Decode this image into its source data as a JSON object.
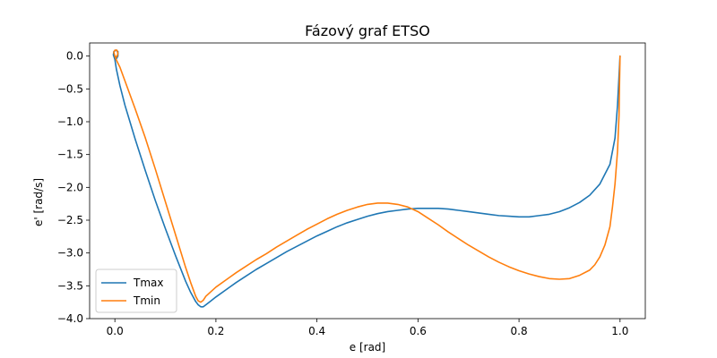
{
  "chart_data": {
    "type": "line",
    "title": "Fázový graf ETSO",
    "xlabel": "e [rad]",
    "ylabel": "e' [rad/s]",
    "xlim": [
      -0.05,
      1.05
    ],
    "ylim": [
      -4.0,
      0.2
    ],
    "xticks": [
      0.0,
      0.2,
      0.4,
      0.6,
      0.8,
      1.0
    ],
    "xtick_labels": [
      "0.0",
      "0.2",
      "0.4",
      "0.6",
      "0.8",
      "1.0"
    ],
    "yticks": [
      0.0,
      -0.5,
      -1.0,
      -1.5,
      -2.0,
      -2.5,
      -3.0,
      -3.5,
      -4.0
    ],
    "ytick_labels": [
      "0.0",
      "−0.5",
      "−1.0",
      "−1.5",
      "−2.0",
      "−2.5",
      "−3.0",
      "−3.5",
      "−4.0"
    ],
    "grid": false,
    "legend_position": "lower-left",
    "series": [
      {
        "name": "Tmax",
        "color": "#1f77b4",
        "points": [
          [
            1.0,
            0.0
          ],
          [
            0.998,
            -0.3
          ],
          [
            0.995,
            -0.75
          ],
          [
            0.99,
            -1.25
          ],
          [
            0.98,
            -1.65
          ],
          [
            0.96,
            -1.95
          ],
          [
            0.94,
            -2.12
          ],
          [
            0.92,
            -2.23
          ],
          [
            0.9,
            -2.31
          ],
          [
            0.88,
            -2.37
          ],
          [
            0.86,
            -2.41
          ],
          [
            0.84,
            -2.43
          ],
          [
            0.82,
            -2.45
          ],
          [
            0.8,
            -2.45
          ],
          [
            0.78,
            -2.44
          ],
          [
            0.76,
            -2.43
          ],
          [
            0.74,
            -2.41
          ],
          [
            0.72,
            -2.39
          ],
          [
            0.7,
            -2.37
          ],
          [
            0.68,
            -2.35
          ],
          [
            0.66,
            -2.33
          ],
          [
            0.64,
            -2.32
          ],
          [
            0.62,
            -2.32
          ],
          [
            0.6,
            -2.32
          ],
          [
            0.58,
            -2.33
          ],
          [
            0.56,
            -2.35
          ],
          [
            0.54,
            -2.37
          ],
          [
            0.52,
            -2.4
          ],
          [
            0.5,
            -2.44
          ],
          [
            0.48,
            -2.49
          ],
          [
            0.46,
            -2.54
          ],
          [
            0.44,
            -2.6
          ],
          [
            0.42,
            -2.67
          ],
          [
            0.4,
            -2.74
          ],
          [
            0.38,
            -2.82
          ],
          [
            0.36,
            -2.9
          ],
          [
            0.34,
            -2.98
          ],
          [
            0.32,
            -3.07
          ],
          [
            0.3,
            -3.16
          ],
          [
            0.28,
            -3.25
          ],
          [
            0.26,
            -3.35
          ],
          [
            0.24,
            -3.45
          ],
          [
            0.22,
            -3.56
          ],
          [
            0.2,
            -3.67
          ],
          [
            0.19,
            -3.73
          ],
          [
            0.18,
            -3.79
          ],
          [
            0.175,
            -3.82
          ],
          [
            0.17,
            -3.82
          ],
          [
            0.165,
            -3.79
          ],
          [
            0.16,
            -3.74
          ],
          [
            0.15,
            -3.6
          ],
          [
            0.14,
            -3.43
          ],
          [
            0.12,
            -3.04
          ],
          [
            0.1,
            -2.63
          ],
          [
            0.08,
            -2.2
          ],
          [
            0.06,
            -1.74
          ],
          [
            0.04,
            -1.26
          ],
          [
            0.02,
            -0.75
          ],
          [
            0.01,
            -0.45
          ],
          [
            0.003,
            -0.2
          ],
          [
            0.0,
            -0.05
          ],
          [
            -0.003,
            0.02
          ],
          [
            -0.002,
            0.07
          ],
          [
            0.002,
            0.09
          ],
          [
            0.006,
            0.07
          ],
          [
            0.006,
            0.0
          ],
          [
            0.003,
            -0.04
          ],
          [
            0.0,
            0.0
          ]
        ]
      },
      {
        "name": "Tmin",
        "color": "#ff7f0e",
        "points": [
          [
            1.0,
            0.0
          ],
          [
            0.999,
            -0.4
          ],
          [
            0.998,
            -0.9
          ],
          [
            0.995,
            -1.45
          ],
          [
            0.99,
            -1.95
          ],
          [
            0.985,
            -2.3
          ],
          [
            0.98,
            -2.6
          ],
          [
            0.97,
            -2.88
          ],
          [
            0.96,
            -3.06
          ],
          [
            0.95,
            -3.18
          ],
          [
            0.94,
            -3.26
          ],
          [
            0.92,
            -3.34
          ],
          [
            0.9,
            -3.39
          ],
          [
            0.88,
            -3.4
          ],
          [
            0.86,
            -3.39
          ],
          [
            0.84,
            -3.36
          ],
          [
            0.82,
            -3.32
          ],
          [
            0.8,
            -3.27
          ],
          [
            0.78,
            -3.21
          ],
          [
            0.76,
            -3.14
          ],
          [
            0.74,
            -3.06
          ],
          [
            0.72,
            -2.97
          ],
          [
            0.7,
            -2.88
          ],
          [
            0.68,
            -2.78
          ],
          [
            0.66,
            -2.68
          ],
          [
            0.64,
            -2.57
          ],
          [
            0.62,
            -2.47
          ],
          [
            0.6,
            -2.37
          ],
          [
            0.58,
            -2.3
          ],
          [
            0.56,
            -2.26
          ],
          [
            0.54,
            -2.24
          ],
          [
            0.52,
            -2.24
          ],
          [
            0.5,
            -2.26
          ],
          [
            0.48,
            -2.3
          ],
          [
            0.46,
            -2.35
          ],
          [
            0.44,
            -2.41
          ],
          [
            0.42,
            -2.48
          ],
          [
            0.4,
            -2.56
          ],
          [
            0.38,
            -2.64
          ],
          [
            0.36,
            -2.73
          ],
          [
            0.34,
            -2.82
          ],
          [
            0.32,
            -2.91
          ],
          [
            0.3,
            -3.01
          ],
          [
            0.28,
            -3.1
          ],
          [
            0.26,
            -3.2
          ],
          [
            0.24,
            -3.3
          ],
          [
            0.22,
            -3.41
          ],
          [
            0.2,
            -3.52
          ],
          [
            0.19,
            -3.59
          ],
          [
            0.18,
            -3.66
          ],
          [
            0.175,
            -3.72
          ],
          [
            0.17,
            -3.75
          ],
          [
            0.165,
            -3.73
          ],
          [
            0.16,
            -3.66
          ],
          [
            0.15,
            -3.45
          ],
          [
            0.14,
            -3.22
          ],
          [
            0.12,
            -2.72
          ],
          [
            0.1,
            -2.22
          ],
          [
            0.08,
            -1.72
          ],
          [
            0.06,
            -1.24
          ],
          [
            0.04,
            -0.8
          ],
          [
            0.02,
            -0.38
          ],
          [
            0.01,
            -0.17
          ],
          [
            0.003,
            -0.06
          ],
          [
            0.0,
            0.0
          ],
          [
            -0.002,
            0.06
          ],
          [
            0.0,
            0.09
          ],
          [
            0.004,
            0.09
          ],
          [
            0.006,
            0.04
          ],
          [
            0.004,
            -0.01
          ],
          [
            0.0,
            0.0
          ]
        ]
      }
    ]
  }
}
